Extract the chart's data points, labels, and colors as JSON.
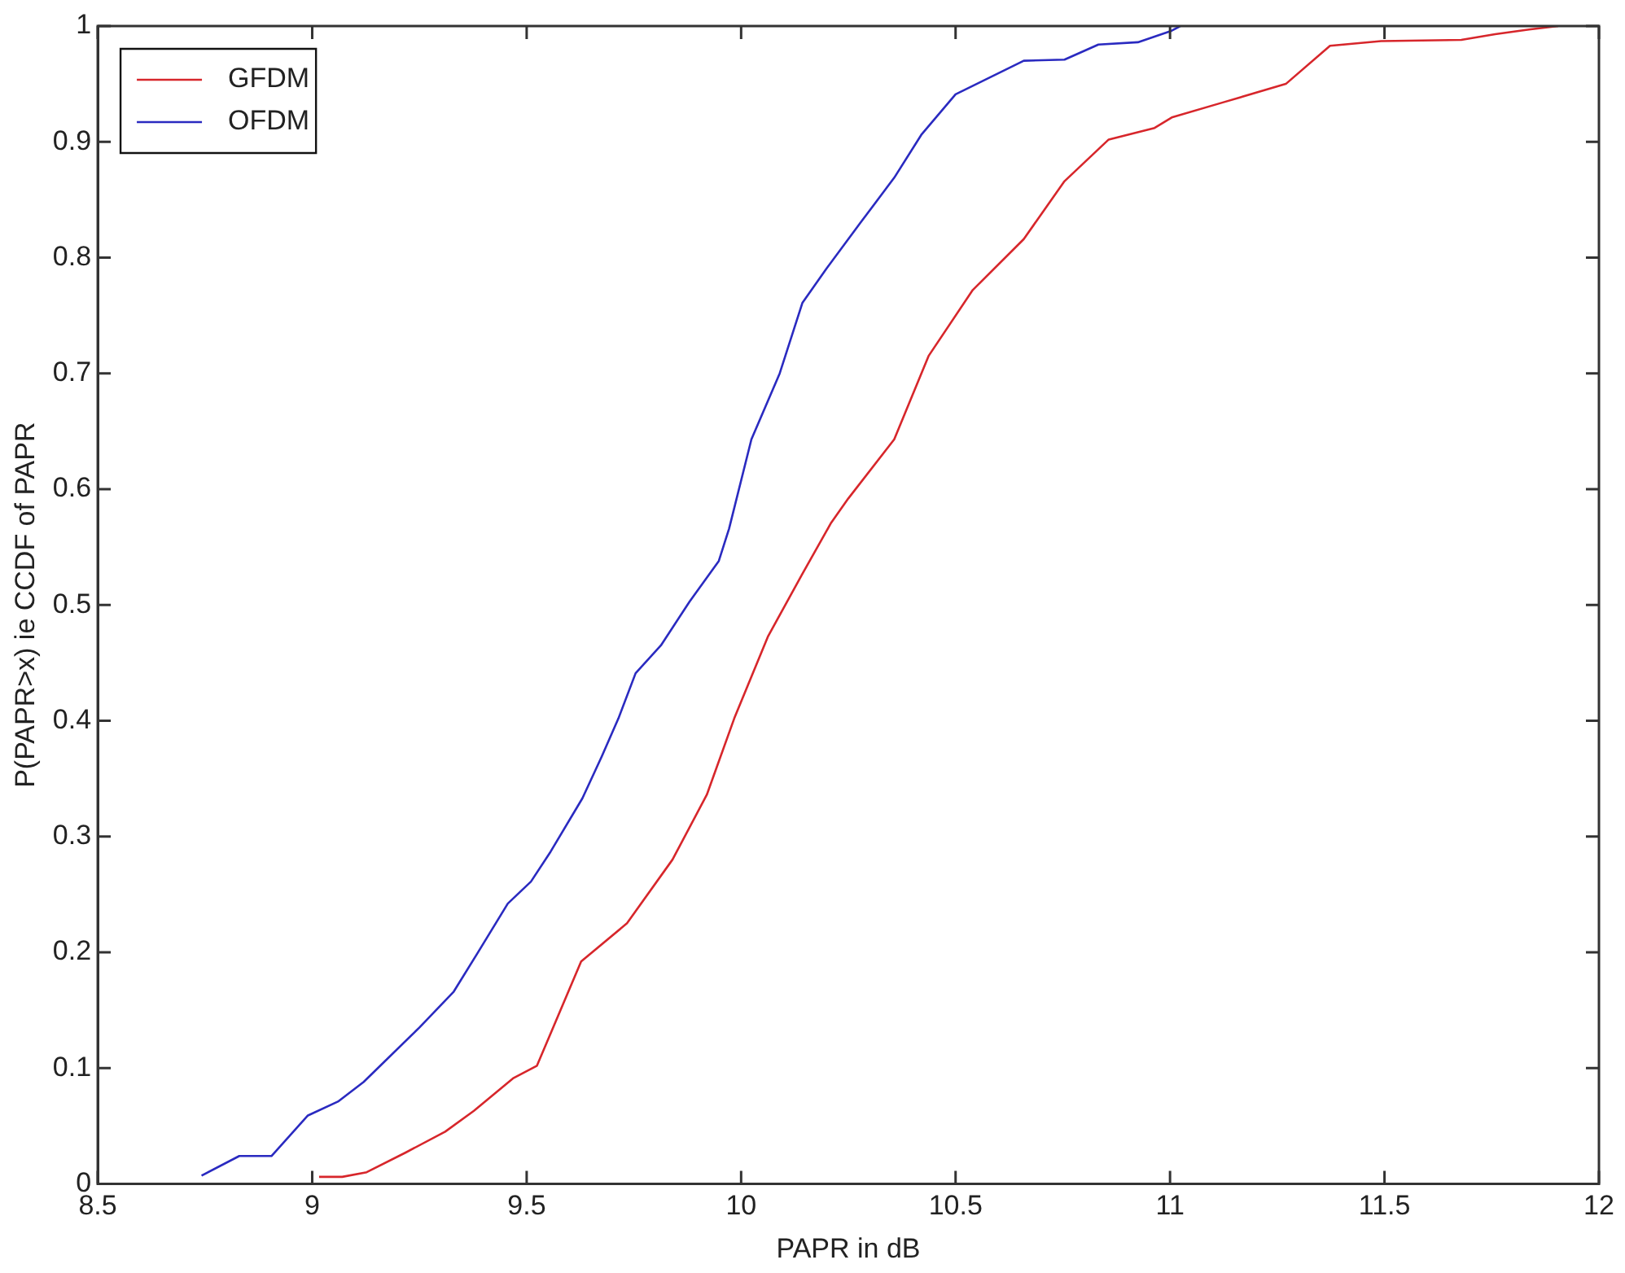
{
  "chart_data": {
    "type": "line",
    "xlabel": "PAPR in dB",
    "ylabel": "P(PAPR>x) ie CCDF of PAPR",
    "xlim": [
      8.5,
      12
    ],
    "xticks": [
      8.5,
      9,
      9.5,
      10,
      10.5,
      11,
      11.5,
      12
    ],
    "ylim": [
      0,
      1
    ],
    "yticks": [
      0,
      0.1,
      0.2,
      0.3,
      0.4,
      0.5,
      0.6,
      0.7,
      0.8,
      0.9,
      1
    ],
    "grid": false,
    "legend": "top left",
    "marker": "none",
    "line_style": "solid",
    "series": [
      {
        "name": "GFDM",
        "color": "#d7262b",
        "x": [
          9.016,
          9.07,
          9.127,
          9.218,
          9.31,
          9.377,
          9.468,
          9.524,
          9.627,
          9.734,
          9.84,
          9.92,
          9.984,
          10.063,
          10.143,
          10.21,
          10.25,
          10.357,
          10.437,
          10.54,
          10.659,
          10.754,
          10.857,
          10.964,
          11.004,
          11.123,
          11.27,
          11.373,
          11.492,
          11.679,
          11.758,
          11.837,
          11.905
        ],
        "values": [
          0.006,
          0.006,
          0.01,
          0.027,
          0.045,
          0.063,
          0.091,
          0.102,
          0.192,
          0.225,
          0.28,
          0.336,
          0.402,
          0.473,
          0.527,
          0.571,
          0.592,
          0.643,
          0.715,
          0.772,
          0.816,
          0.866,
          0.902,
          0.912,
          0.921,
          0.934,
          0.95,
          0.983,
          0.987,
          0.988,
          0.993,
          0.997,
          1
        ]
      },
      {
        "name": "OFDM",
        "color": "#2a2ac0",
        "x": [
          8.742,
          8.83,
          8.905,
          8.99,
          9.06,
          9.12,
          9.25,
          9.33,
          9.385,
          9.456,
          9.51,
          9.556,
          9.63,
          9.675,
          9.714,
          9.754,
          9.813,
          9.88,
          9.948,
          9.972,
          10.024,
          10.09,
          10.143,
          10.198,
          10.278,
          10.357,
          10.42,
          10.5,
          10.659,
          10.754,
          10.833,
          10.925,
          11.004,
          11.024
        ],
        "values": [
          0.007,
          0.024,
          0.024,
          0.059,
          0.071,
          0.088,
          0.135,
          0.166,
          0.199,
          0.242,
          0.261,
          0.287,
          0.333,
          0.369,
          0.402,
          0.441,
          0.465,
          0.503,
          0.538,
          0.566,
          0.643,
          0.7,
          0.761,
          0.79,
          0.83,
          0.869,
          0.906,
          0.941,
          0.97,
          0.971,
          0.984,
          0.986,
          0.996,
          1
        ]
      }
    ]
  }
}
